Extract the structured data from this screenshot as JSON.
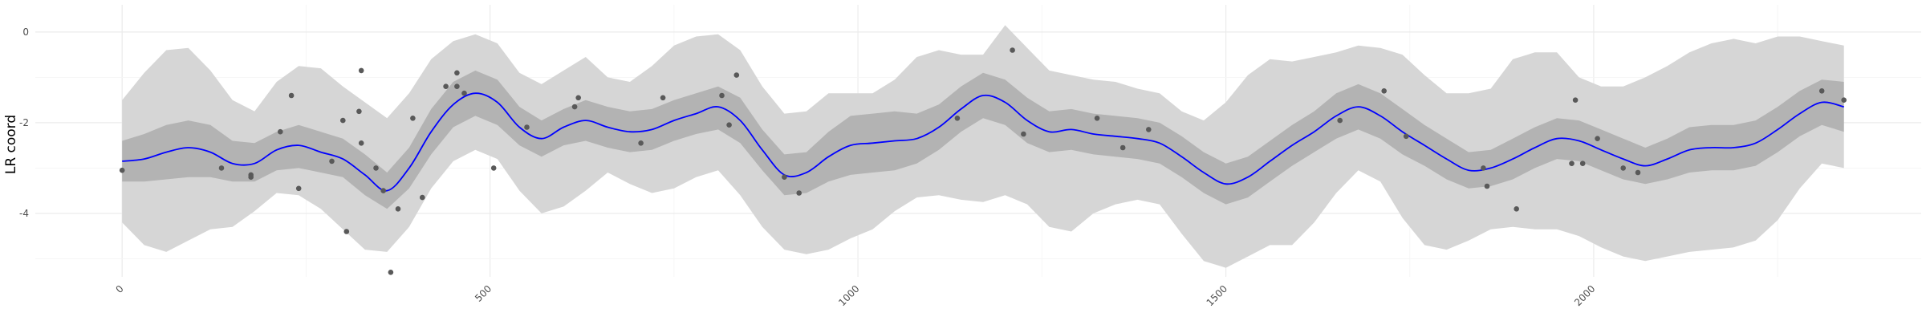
{
  "chart_data": {
    "type": "line",
    "title": "",
    "xlabel": "",
    "ylabel": "LR coord",
    "xlim": [
      -118,
      2445
    ],
    "ylim": [
      -5.4,
      0.6
    ],
    "x_ticks": [
      0,
      500,
      1000,
      1500,
      2000
    ],
    "x_tick_labels": [
      "0",
      "500",
      "1000",
      "1500",
      "2000"
    ],
    "x_tick_rotation": -45,
    "y_ticks": [
      0,
      -2,
      -4
    ],
    "y_tick_labels": [
      "0",
      "-2",
      "-4"
    ],
    "grid": true,
    "legend": "none",
    "colors": {
      "line": "#0000ff",
      "inner_band": "#b3b3b3",
      "outer_band": "#d6d6d6",
      "points": "#595959",
      "grid_major": "#ebebeb",
      "grid_minor": "#f5f5f5"
    },
    "series": [
      {
        "type": "line",
        "x": [
          0,
          30,
          60,
          90,
          120,
          150,
          180,
          210,
          240,
          270,
          300,
          330,
          360,
          390,
          420,
          450,
          480,
          510,
          540,
          570,
          600,
          630,
          660,
          690,
          720,
          750,
          780,
          810,
          840,
          870,
          900,
          930,
          960,
          990,
          1020,
          1050,
          1080,
          1110,
          1140,
          1170,
          1200,
          1230,
          1260,
          1290,
          1320,
          1350,
          1380,
          1410,
          1440,
          1470,
          1500,
          1530,
          1560,
          1590,
          1620,
          1650,
          1680,
          1710,
          1740,
          1770,
          1800,
          1830,
          1860,
          1890,
          1920,
          1950,
          1980,
          2010,
          2040,
          2070,
          2100,
          2130,
          2160,
          2190,
          2220,
          2250,
          2280,
          2310,
          2340
        ],
        "y": [
          -2.85,
          -2.8,
          -2.65,
          -2.55,
          -2.65,
          -2.9,
          -2.9,
          -2.6,
          -2.5,
          -2.65,
          -2.8,
          -3.15,
          -3.5,
          -3.0,
          -2.2,
          -1.6,
          -1.35,
          -1.55,
          -2.1,
          -2.35,
          -2.1,
          -1.95,
          -2.1,
          -2.2,
          -2.15,
          -1.95,
          -1.8,
          -1.65,
          -1.95,
          -2.6,
          -3.15,
          -3.1,
          -2.75,
          -2.5,
          -2.45,
          -2.4,
          -2.35,
          -2.1,
          -1.7,
          -1.4,
          -1.55,
          -1.95,
          -2.2,
          -2.15,
          -2.25,
          -2.3,
          -2.35,
          -2.45,
          -2.75,
          -3.1,
          -3.35,
          -3.2,
          -2.85,
          -2.5,
          -2.2,
          -1.85,
          -1.65,
          -1.85,
          -2.2,
          -2.5,
          -2.8,
          -3.05,
          -3.0,
          -2.8,
          -2.55,
          -2.35,
          -2.4,
          -2.6,
          -2.8,
          -2.95,
          -2.8,
          -2.6,
          -2.55,
          -2.55,
          -2.45,
          -2.15,
          -1.8,
          -1.55,
          -1.65
        ]
      },
      {
        "type": "band",
        "name": "inner",
        "x": [
          0,
          30,
          60,
          90,
          120,
          150,
          180,
          210,
          240,
          270,
          300,
          330,
          360,
          390,
          420,
          450,
          480,
          510,
          540,
          570,
          600,
          630,
          660,
          690,
          720,
          750,
          780,
          810,
          840,
          870,
          900,
          930,
          960,
          990,
          1020,
          1050,
          1080,
          1110,
          1140,
          1170,
          1200,
          1230,
          1260,
          1290,
          1320,
          1350,
          1380,
          1410,
          1440,
          1470,
          1500,
          1530,
          1560,
          1590,
          1620,
          1650,
          1680,
          1710,
          1740,
          1770,
          1800,
          1830,
          1860,
          1890,
          1920,
          1950,
          1980,
          2010,
          2040,
          2070,
          2100,
          2130,
          2160,
          2190,
          2220,
          2250,
          2280,
          2310,
          2340
        ],
        "lower": [
          -3.3,
          -3.3,
          -3.25,
          -3.2,
          -3.2,
          -3.3,
          -3.3,
          -3.05,
          -3.0,
          -3.1,
          -3.2,
          -3.6,
          -3.9,
          -3.45,
          -2.7,
          -2.1,
          -1.85,
          -2.05,
          -2.5,
          -2.75,
          -2.5,
          -2.4,
          -2.55,
          -2.65,
          -2.6,
          -2.4,
          -2.25,
          -2.15,
          -2.45,
          -3.05,
          -3.6,
          -3.55,
          -3.3,
          -3.15,
          -3.1,
          -3.05,
          -2.9,
          -2.6,
          -2.2,
          -1.9,
          -2.05,
          -2.45,
          -2.65,
          -2.6,
          -2.7,
          -2.75,
          -2.8,
          -2.9,
          -3.2,
          -3.55,
          -3.8,
          -3.65,
          -3.3,
          -2.95,
          -2.65,
          -2.35,
          -2.15,
          -2.35,
          -2.7,
          -2.95,
          -3.25,
          -3.45,
          -3.4,
          -3.25,
          -3.0,
          -2.8,
          -2.85,
          -3.05,
          -3.25,
          -3.35,
          -3.25,
          -3.1,
          -3.05,
          -3.05,
          -2.95,
          -2.65,
          -2.3,
          -2.05,
          -2.2
        ],
        "upper": [
          -2.4,
          -2.25,
          -2.05,
          -1.95,
          -2.05,
          -2.4,
          -2.45,
          -2.2,
          -2.05,
          -2.2,
          -2.35,
          -2.7,
          -3.1,
          -2.55,
          -1.7,
          -1.1,
          -0.85,
          -1.05,
          -1.65,
          -1.95,
          -1.7,
          -1.5,
          -1.65,
          -1.75,
          -1.7,
          -1.5,
          -1.35,
          -1.2,
          -1.45,
          -2.15,
          -2.7,
          -2.65,
          -2.2,
          -1.85,
          -1.8,
          -1.75,
          -1.8,
          -1.6,
          -1.2,
          -0.9,
          -1.05,
          -1.45,
          -1.75,
          -1.7,
          -1.8,
          -1.85,
          -1.9,
          -2.0,
          -2.3,
          -2.65,
          -2.9,
          -2.75,
          -2.4,
          -2.05,
          -1.75,
          -1.35,
          -1.15,
          -1.35,
          -1.7,
          -2.05,
          -2.35,
          -2.65,
          -2.6,
          -2.35,
          -2.1,
          -1.9,
          -1.95,
          -2.15,
          -2.35,
          -2.55,
          -2.35,
          -2.1,
          -2.05,
          -2.05,
          -1.95,
          -1.65,
          -1.3,
          -1.05,
          -1.1
        ]
      },
      {
        "type": "band",
        "name": "outer",
        "x": [
          0,
          30,
          60,
          90,
          120,
          150,
          180,
          210,
          240,
          270,
          300,
          330,
          360,
          390,
          420,
          450,
          480,
          510,
          540,
          570,
          600,
          630,
          660,
          690,
          720,
          750,
          780,
          810,
          840,
          870,
          900,
          930,
          960,
          990,
          1020,
          1050,
          1080,
          1110,
          1140,
          1170,
          1200,
          1230,
          1260,
          1290,
          1320,
          1350,
          1380,
          1410,
          1440,
          1470,
          1500,
          1530,
          1560,
          1590,
          1620,
          1650,
          1680,
          1710,
          1740,
          1770,
          1800,
          1830,
          1860,
          1890,
          1920,
          1950,
          1980,
          2010,
          2040,
          2070,
          2100,
          2130,
          2160,
          2190,
          2220,
          2250,
          2280,
          2310,
          2340
        ],
        "lower": [
          -4.2,
          -4.7,
          -4.85,
          -4.6,
          -4.35,
          -4.3,
          -3.95,
          -3.55,
          -3.6,
          -3.9,
          -4.35,
          -4.8,
          -4.85,
          -4.3,
          -3.45,
          -2.85,
          -2.6,
          -2.8,
          -3.5,
          -4.0,
          -3.85,
          -3.5,
          -3.1,
          -3.35,
          -3.55,
          -3.45,
          -3.2,
          -3.05,
          -3.6,
          -4.3,
          -4.8,
          -4.9,
          -4.8,
          -4.55,
          -4.35,
          -3.95,
          -3.65,
          -3.6,
          -3.7,
          -3.75,
          -3.6,
          -3.8,
          -4.3,
          -4.4,
          -4.0,
          -3.8,
          -3.7,
          -3.8,
          -4.45,
          -5.05,
          -5.2,
          -4.95,
          -4.7,
          -4.7,
          -4.2,
          -3.55,
          -3.05,
          -3.3,
          -4.1,
          -4.7,
          -4.8,
          -4.6,
          -4.35,
          -4.3,
          -4.35,
          -4.35,
          -4.5,
          -4.75,
          -4.95,
          -5.05,
          -4.95,
          -4.85,
          -4.8,
          -4.75,
          -4.6,
          -4.15,
          -3.45,
          -2.9,
          -3.0
        ],
        "upper": [
          -1.5,
          -0.9,
          -0.4,
          -0.35,
          -0.85,
          -1.5,
          -1.75,
          -1.1,
          -0.75,
          -0.8,
          -1.2,
          -1.55,
          -1.9,
          -1.35,
          -0.6,
          -0.2,
          -0.05,
          -0.25,
          -0.9,
          -1.15,
          -0.85,
          -0.55,
          -1.0,
          -1.1,
          -0.75,
          -0.3,
          -0.1,
          -0.05,
          -0.4,
          -1.2,
          -1.8,
          -1.75,
          -1.35,
          -1.35,
          -1.35,
          -1.05,
          -0.55,
          -0.4,
          -0.5,
          -0.5,
          0.15,
          -0.35,
          -0.85,
          -0.95,
          -1.05,
          -1.1,
          -1.25,
          -1.35,
          -1.75,
          -1.95,
          -1.55,
          -0.95,
          -0.6,
          -0.65,
          -0.55,
          -0.45,
          -0.3,
          -0.35,
          -0.5,
          -0.95,
          -1.35,
          -1.35,
          -1.25,
          -0.6,
          -0.45,
          -0.45,
          -1.0,
          -1.2,
          -1.2,
          -1.0,
          -0.75,
          -0.45,
          -0.25,
          -0.15,
          -0.25,
          -0.1,
          -0.1,
          -0.2,
          -0.3
        ]
      },
      {
        "type": "scatter",
        "x": [
          0,
          135,
          175,
          175,
          215,
          230,
          240,
          285,
          300,
          305,
          322,
          325,
          325,
          345,
          355,
          365,
          375,
          395,
          408,
          440,
          455,
          455,
          465,
          505,
          550,
          615,
          620,
          705,
          735,
          815,
          825,
          835,
          900,
          920,
          1135,
          1210,
          1225,
          1325,
          1360,
          1395,
          1655,
          1715,
          1745,
          1850,
          1855,
          1895,
          1970,
          1975,
          1985,
          2005,
          2040,
          2060,
          2310,
          2340
        ],
        "y": [
          -3.05,
          -3.0,
          -3.15,
          -3.2,
          -2.2,
          -1.4,
          -3.45,
          -2.85,
          -1.95,
          -4.4,
          -1.75,
          -0.85,
          -2.45,
          -3.0,
          -3.5,
          -5.3,
          -3.9,
          -1.9,
          -3.65,
          -1.2,
          -0.9,
          -1.2,
          -1.35,
          -3.0,
          -2.1,
          -1.65,
          -1.45,
          -2.45,
          -1.45,
          -1.4,
          -2.05,
          -0.95,
          -3.2,
          -3.55,
          -1.9,
          -0.4,
          -2.25,
          -1.9,
          -2.55,
          -2.15,
          -1.95,
          -1.3,
          -2.3,
          -3.0,
          -3.4,
          -3.9,
          -2.9,
          -1.5,
          -2.9,
          -2.35,
          -3.0,
          -3.1,
          -1.3,
          -1.5
        ]
      }
    ]
  }
}
